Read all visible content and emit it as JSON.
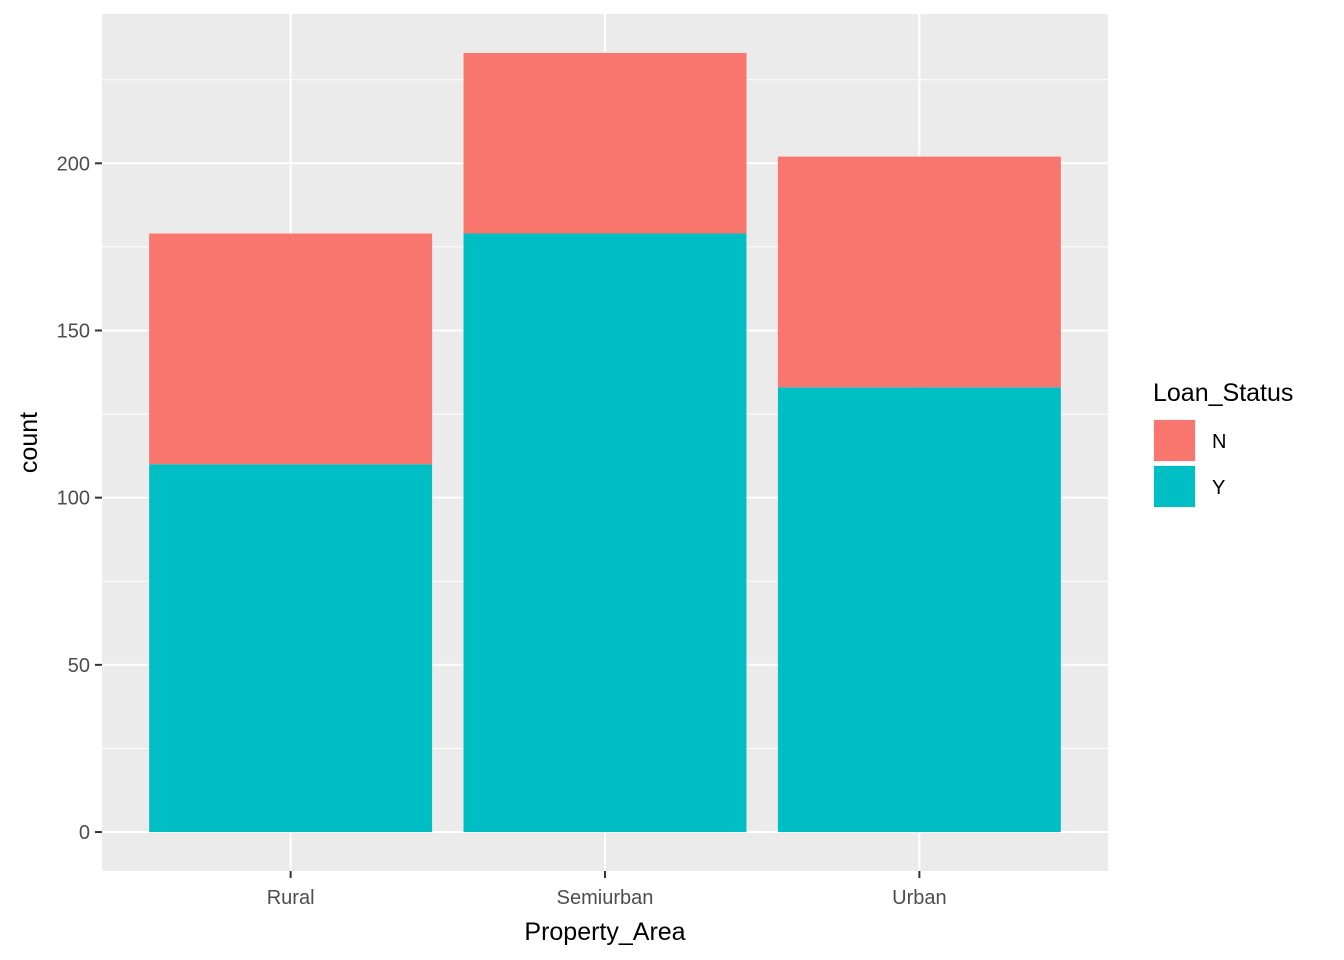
{
  "chart_data": {
    "type": "bar",
    "stacked": true,
    "xlabel": "Property_Area",
    "ylabel": "count",
    "categories": [
      "Rural",
      "Semiurban",
      "Urban"
    ],
    "series": [
      {
        "name": "N",
        "values": [
          69,
          54,
          69
        ]
      },
      {
        "name": "Y",
        "values": [
          110,
          179,
          133
        ]
      }
    ],
    "ylim": [
      -11.65,
      244.65
    ],
    "yticks": [
      0,
      50,
      100,
      150,
      200
    ],
    "ytick_labels": [
      "0",
      "50",
      "100",
      "150",
      "200"
    ],
    "grid": true,
    "legend": {
      "title": "Loan_Status",
      "position": "right",
      "entries": [
        "N",
        "Y"
      ]
    },
    "colors": {
      "N": "#F8766D",
      "Y": "#00BFC4",
      "panel": "#EBEBEB",
      "grid": "#FFFFFF"
    }
  }
}
